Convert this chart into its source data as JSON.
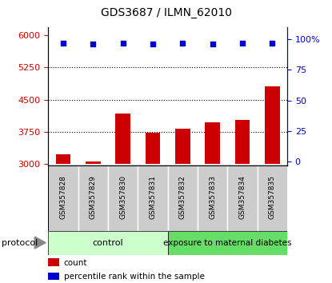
{
  "title": "GDS3687 / ILMN_62010",
  "samples": [
    "GSM357828",
    "GSM357829",
    "GSM357830",
    "GSM357831",
    "GSM357832",
    "GSM357833",
    "GSM357834",
    "GSM357835"
  ],
  "bar_values": [
    3220,
    3060,
    4180,
    3730,
    3820,
    3970,
    4020,
    4820
  ],
  "percentile_values": [
    97,
    96,
    97,
    96,
    97,
    96,
    97,
    97
  ],
  "bar_color": "#cc0000",
  "dot_color": "#0000cc",
  "ylim_left": [
    2960,
    6200
  ],
  "ylim_right": [
    -3,
    110
  ],
  "yticks_left": [
    3000,
    3750,
    4500,
    5250,
    6000
  ],
  "yticks_right": [
    0,
    25,
    50,
    75,
    100
  ],
  "grid_values": [
    3750,
    4500,
    5250
  ],
  "control_count": 4,
  "treatment_count": 4,
  "control_label": "control",
  "treatment_label": "exposure to maternal diabetes",
  "protocol_label": "protocol",
  "legend_count_label": "count",
  "legend_pct_label": "percentile rank within the sample",
  "control_bg": "#ccffcc",
  "treatment_bg": "#66dd66",
  "xticklabel_bg": "#cccccc",
  "bar_bottom": 3000
}
